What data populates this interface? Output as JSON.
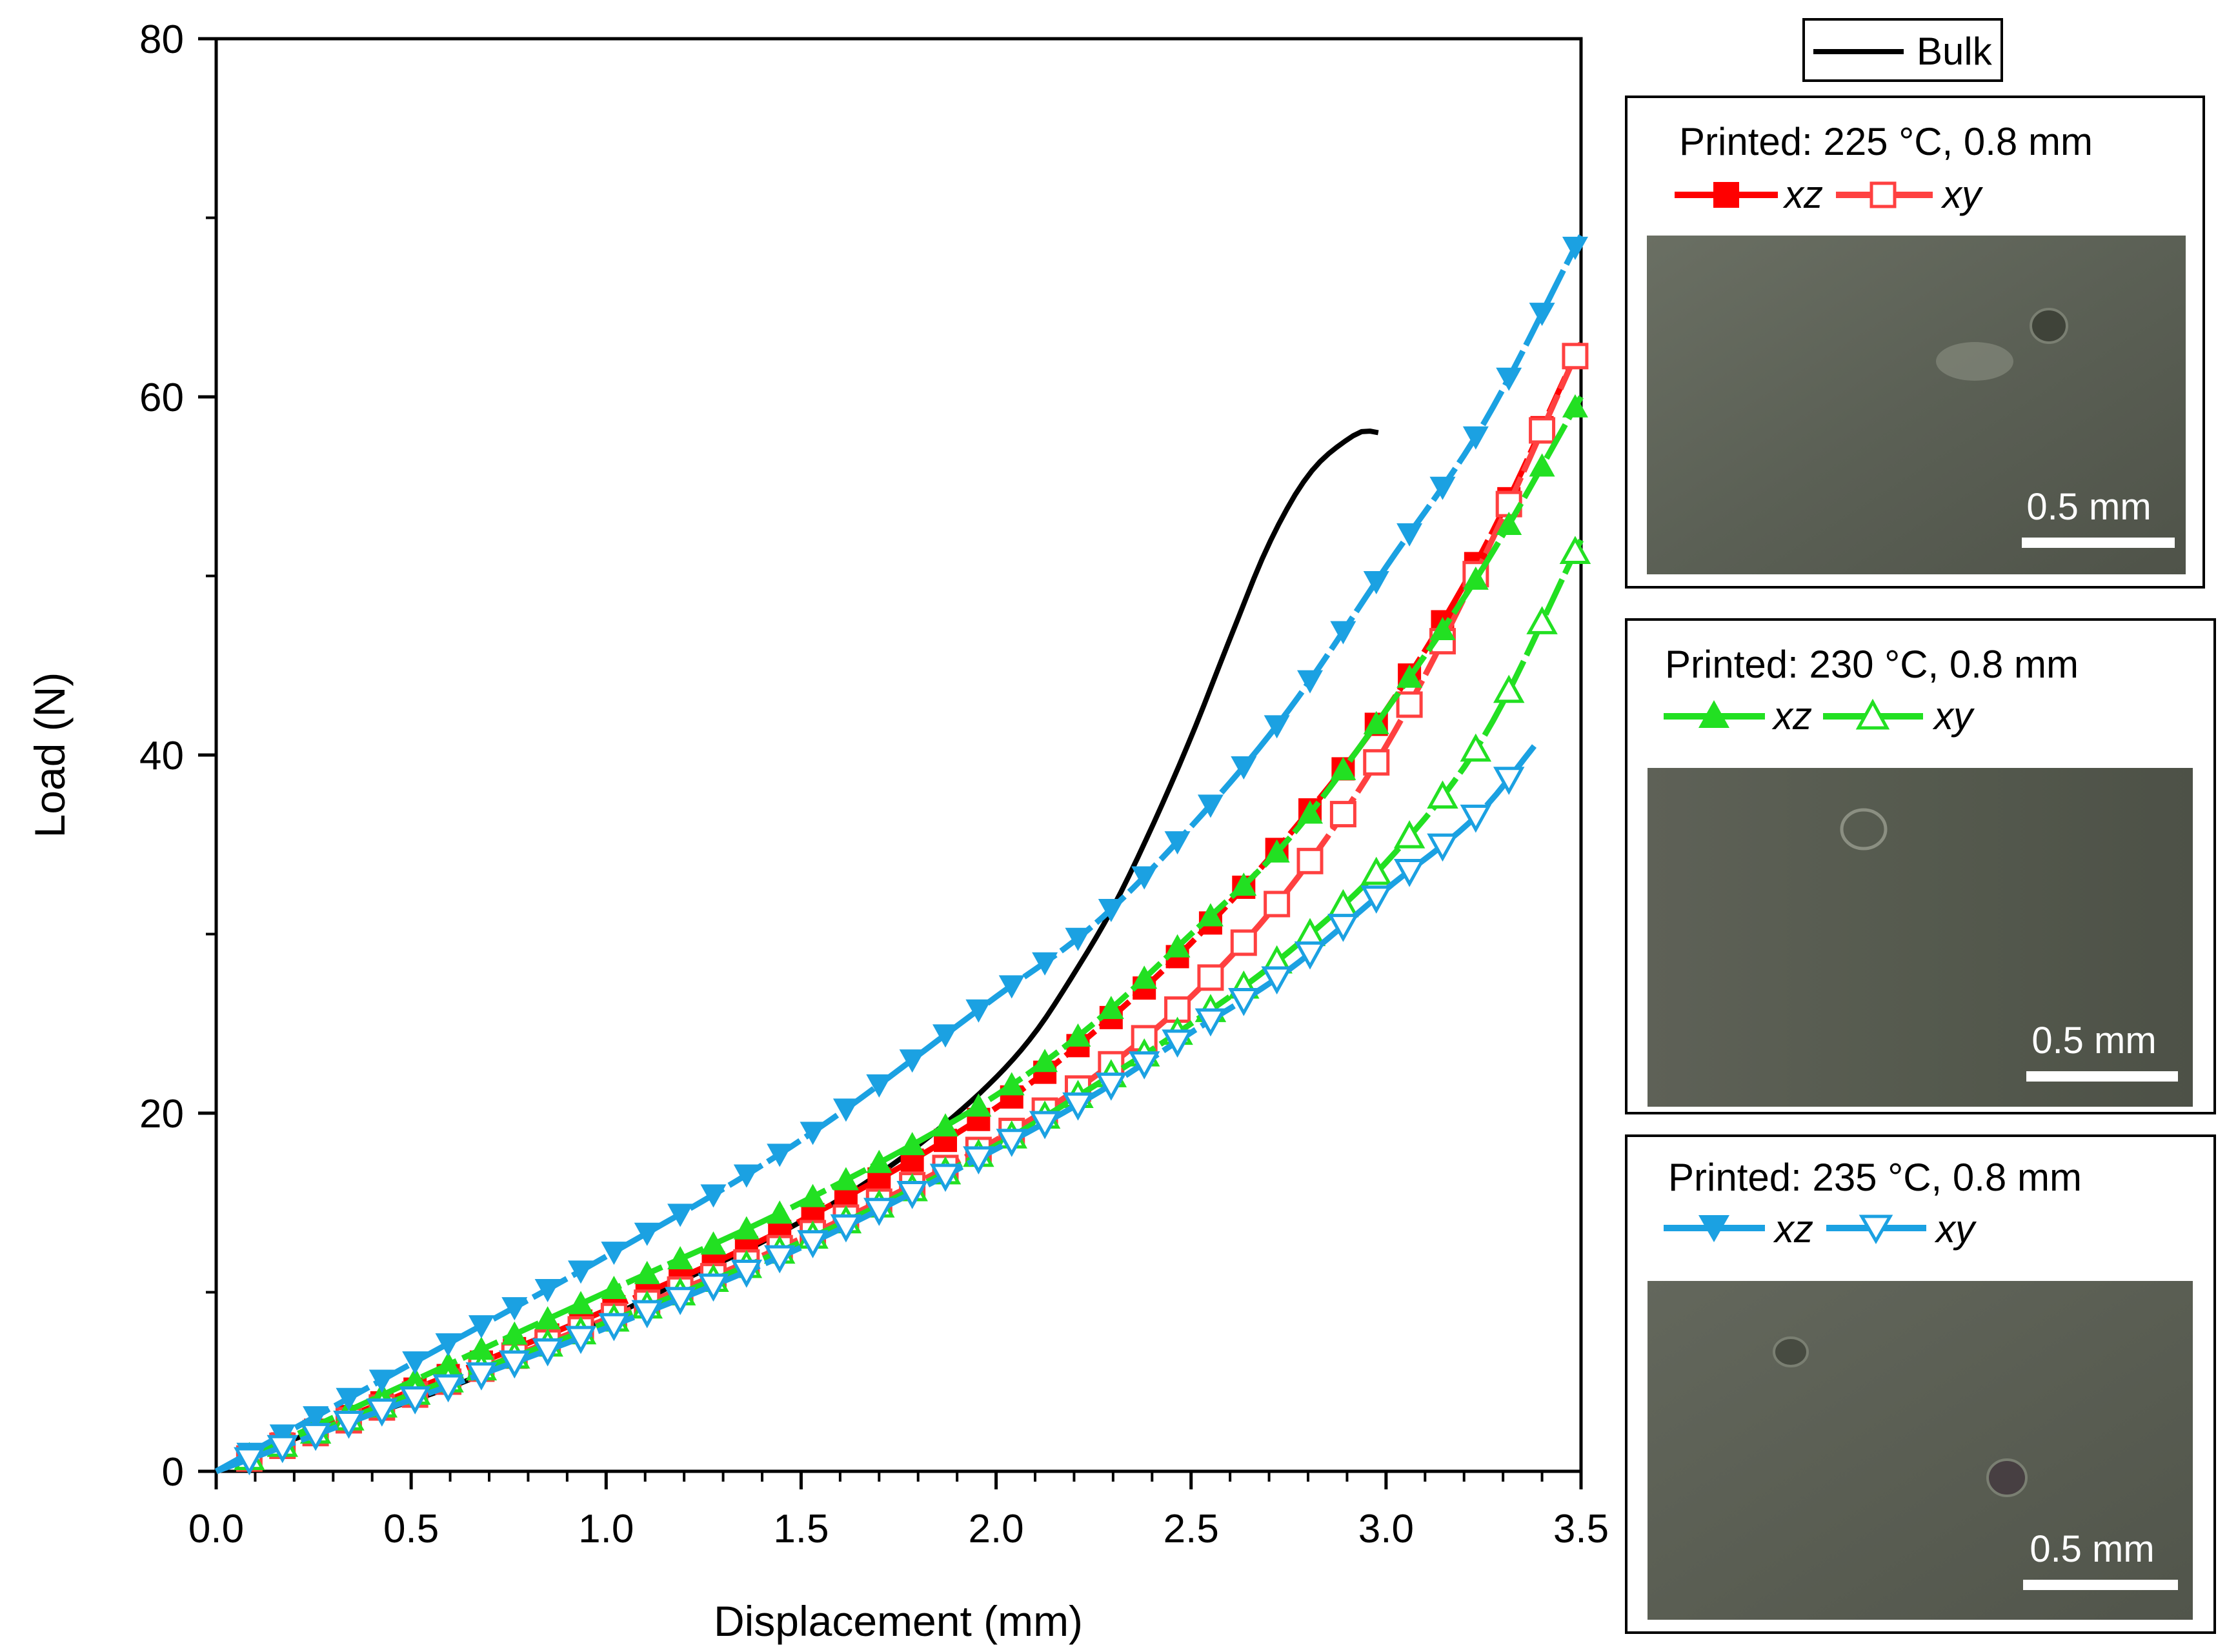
{
  "chart_data": {
    "type": "line",
    "title": "",
    "xlabel": "Displacement (mm)",
    "ylabel": "Load (N)",
    "xlim": [
      0,
      3.5
    ],
    "ylim": [
      0,
      80
    ],
    "x_ticks": [
      "0.0",
      "0.5",
      "1.0",
      "1.5",
      "2.0",
      "2.5",
      "3.0",
      "3.5"
    ],
    "y_ticks": [
      "0",
      "20",
      "40",
      "60",
      "80"
    ],
    "grid": false,
    "series": [
      {
        "name": "Bulk",
        "color": "#000000",
        "marker": "none",
        "x": [
          0.0,
          0.2,
          0.4,
          0.6,
          0.8,
          1.0,
          1.2,
          1.4,
          1.6,
          1.8,
          2.0,
          2.1,
          2.2,
          2.3,
          2.4,
          2.5,
          2.6,
          2.7,
          2.8,
          2.9,
          2.95,
          2.98
        ],
        "y": [
          0.0,
          1.8,
          3.2,
          4.7,
          6.5,
          8.5,
          10.7,
          12.8,
          15.2,
          18.2,
          22.0,
          24.5,
          27.8,
          31.5,
          36.0,
          41.0,
          46.5,
          51.8,
          55.6,
          57.6,
          58.1,
          58.0
        ]
      },
      {
        "name": "225 °C xz",
        "color": "#ff0000",
        "marker": "square-filled",
        "x": [
          0.0,
          0.5,
          1.0,
          1.5,
          2.0,
          2.25,
          2.5,
          2.75,
          3.0,
          3.25,
          3.5
        ],
        "y": [
          0.0,
          4.5,
          9.0,
          14.0,
          20.3,
          24.5,
          29.5,
          35.5,
          42.5,
          51.5,
          63.0
        ]
      },
      {
        "name": "225 °C xy",
        "color": "#ff4040",
        "marker": "square-open",
        "x": [
          0.0,
          0.5,
          1.0,
          1.5,
          2.0,
          2.25,
          2.5,
          2.75,
          3.0,
          3.25,
          3.5
        ],
        "y": [
          0.0,
          4.2,
          8.5,
          13.0,
          18.5,
          22.0,
          26.5,
          32.5,
          40.5,
          51.0,
          63.0
        ]
      },
      {
        "name": "230 °C xz",
        "color": "#22e022",
        "marker": "triangle-up-filled",
        "x": [
          0.0,
          0.5,
          1.0,
          1.5,
          2.0,
          2.25,
          2.5,
          2.75,
          3.0,
          3.25,
          3.5
        ],
        "y": [
          0.0,
          5.0,
          10.0,
          15.0,
          21.0,
          25.0,
          30.0,
          35.3,
          42.5,
          50.5,
          60.0
        ]
      },
      {
        "name": "230 °C xy",
        "color": "#22e022",
        "marker": "triangle-up-open",
        "x": [
          0.0,
          0.5,
          1.0,
          1.5,
          2.0,
          2.25,
          2.5,
          2.75,
          3.0,
          3.25,
          3.5
        ],
        "y": [
          0.0,
          4.3,
          8.3,
          12.8,
          18.2,
          21.5,
          25.0,
          29.0,
          34.0,
          41.0,
          52.0
        ]
      },
      {
        "name": "235 °C xz",
        "color": "#1ba1e2",
        "marker": "triangle-down-filled",
        "x": [
          0.0,
          0.5,
          1.0,
          1.5,
          2.0,
          2.25,
          2.5,
          2.75,
          3.0,
          3.25,
          3.5
        ],
        "y": [
          0.0,
          6.0,
          12.0,
          18.5,
          26.5,
          30.5,
          36.0,
          42.5,
          50.5,
          58.5,
          69.0
        ]
      },
      {
        "name": "235 °C xy",
        "color": "#1ba1e2",
        "marker": "triangle-down-open",
        "x": [
          0.0,
          0.5,
          1.0,
          1.5,
          2.0,
          2.25,
          2.5,
          2.75,
          3.0,
          3.25,
          3.38
        ],
        "y": [
          0.0,
          4.0,
          8.0,
          12.5,
          18.0,
          21.0,
          24.5,
          28.0,
          32.5,
          37.0,
          40.5
        ]
      }
    ]
  },
  "legend": {
    "bulk_label": "Bulk",
    "panels": [
      {
        "title": "Printed: 225 °C, 0.8 mm",
        "xz_label": "xz",
        "xy_label": "xy",
        "color": "#ff0000",
        "photo_color": "#5a5f55",
        "scale_label": "0.5 mm"
      },
      {
        "title": "Printed: 230 °C, 0.8 mm",
        "xz_label": "xz",
        "xy_label": "xy",
        "color": "#22e022",
        "photo_color": "#565a4f",
        "scale_label": "0.5 mm"
      },
      {
        "title": "Printed: 235 °C, 0.8 mm",
        "xz_label": "xz",
        "xy_label": "xy",
        "color": "#1ba1e2",
        "photo_color": "#585c52",
        "scale_label": "0.5 mm"
      }
    ]
  }
}
